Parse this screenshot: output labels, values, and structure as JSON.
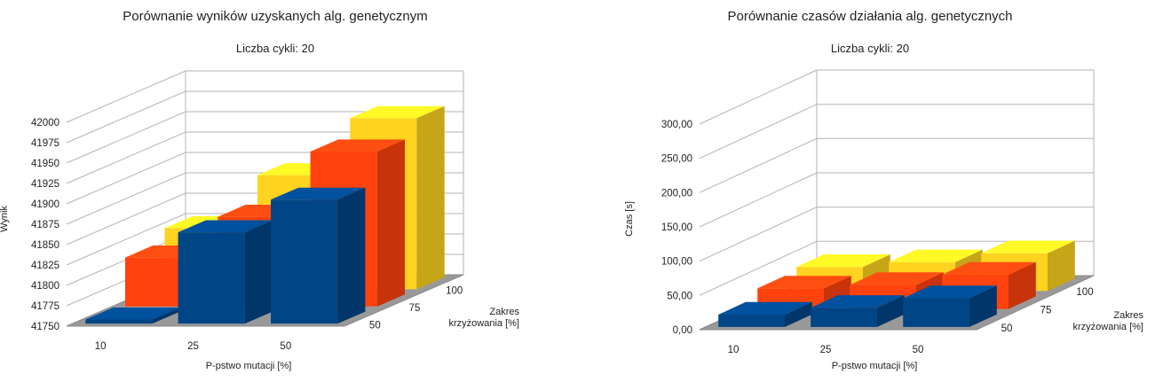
{
  "chart_data": [
    {
      "type": "bar3d",
      "title": "Porównanie wyników uzyskanych alg. genetycznym",
      "subtitle": "Liczba cykli: 20",
      "xlabel": "P-pstwo mutacji  [%]",
      "ylabel": "Wynik",
      "zlabel": "Zakres krzyżowania [%]",
      "x_categories": [
        "10",
        "25",
        "50"
      ],
      "z_categories": [
        "50",
        "75",
        "100"
      ],
      "y_ticks": [
        41750,
        41775,
        41800,
        41825,
        41850,
        41875,
        41900,
        41925,
        41950,
        41975,
        42000
      ],
      "ylim": [
        41750,
        42000
      ],
      "series": [
        {
          "name": "50",
          "color": "#004586",
          "values": [
            41755,
            41862,
            41902
          ]
        },
        {
          "name": "75",
          "color": "#ff420e",
          "values": [
            41810,
            41860,
            41940
          ]
        },
        {
          "name": "100",
          "color": "#ffd320",
          "values": [
            41825,
            41890,
            41960
          ]
        }
      ]
    },
    {
      "type": "bar3d",
      "title": "Porównanie czasów działania alg. genetycznych",
      "subtitle": "Liczba cykli: 20",
      "xlabel": "P-pstwo mutacji  [%]",
      "ylabel": "Czas [s]",
      "zlabel": "Zakres krzyżowania [%]",
      "x_categories": [
        "10",
        "25",
        "50"
      ],
      "z_categories": [
        "50",
        "75",
        "100"
      ],
      "y_ticks": [
        "0,00",
        "50,00",
        "100,00",
        "150,00",
        "200,00",
        "250,00",
        "300,00"
      ],
      "ylim": [
        0,
        300
      ],
      "series": [
        {
          "name": "50",
          "color": "#004586",
          "values": [
            18,
            28,
            42
          ]
        },
        {
          "name": "75",
          "color": "#ff420e",
          "values": [
            30,
            35,
            50
          ]
        },
        {
          "name": "100",
          "color": "#ffd320",
          "values": [
            35,
            42,
            55
          ]
        }
      ]
    }
  ]
}
